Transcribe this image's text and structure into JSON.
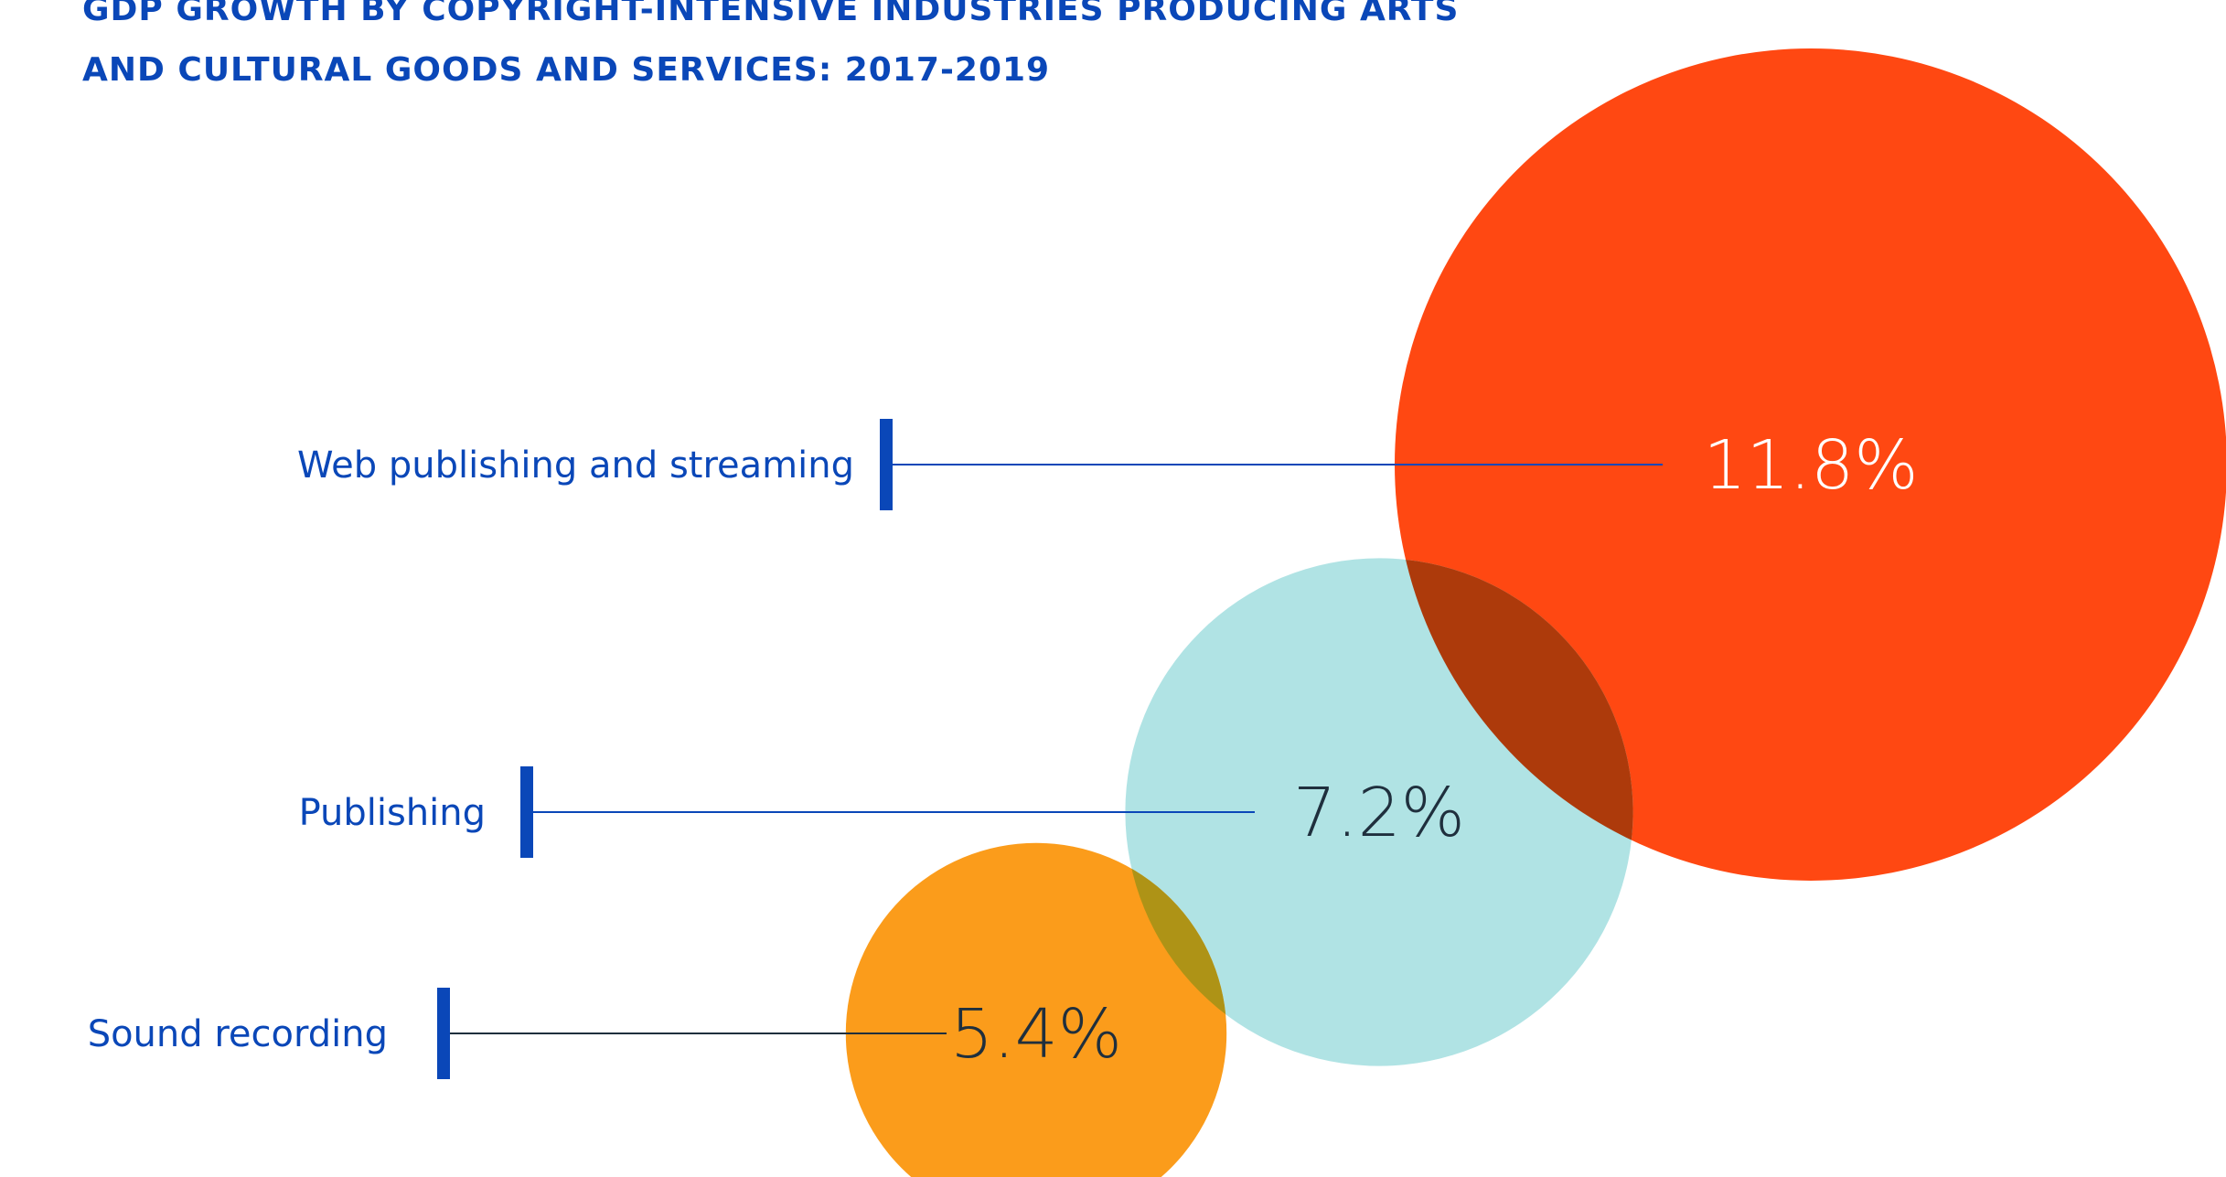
{
  "title": {
    "line1": "GDP GROWTH BY COPYRIGHT-INTENSIVE INDUSTRIES PRODUCING ARTS",
    "line2": "AND CULTURAL GOODS AND SERVICES: 2017-2019"
  },
  "chart_data": {
    "type": "bubble",
    "title": "GDP GROWTH BY COPYRIGHT-INTENSIVE INDUSTRIES PRODUCING ARTS AND CULTURAL GOODS AND SERVICES: 2017-2019",
    "unit": "%",
    "categories": [
      "Web publishing and streaming",
      "Publishing",
      "Sound recording"
    ],
    "values": [
      11.8,
      7.2,
      5.4
    ],
    "value_labels": [
      "11.8%",
      "7.2%",
      "5.4%"
    ],
    "colors": [
      "#ff4812",
      "#b0e3e4",
      "#fb9c1b"
    ],
    "label_colors": [
      "#ffffff",
      "#1f2f3d",
      "#1f2f3d"
    ],
    "leader_color": "#0a47b8",
    "grid": false,
    "legend": "none"
  }
}
